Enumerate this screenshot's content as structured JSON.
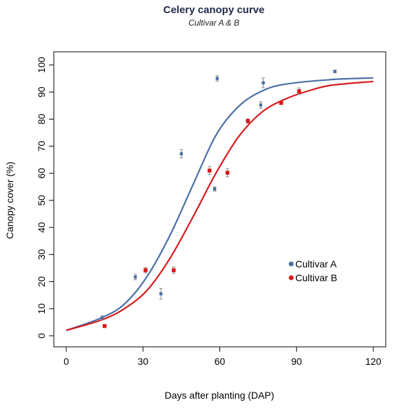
{
  "chart_data": {
    "type": "scatter",
    "title": "Celery canopy curve",
    "subtitle": "Cultivar A & B",
    "xlabel": "Days after planting (DAP)",
    "ylabel": "Canopy cover (%)",
    "xlim": [
      -5,
      125
    ],
    "ylim": [
      -4,
      104
    ],
    "xticks": [
      0,
      30,
      60,
      90,
      120
    ],
    "yticks": [
      0,
      10,
      20,
      30,
      40,
      50,
      60,
      70,
      80,
      90,
      100
    ],
    "grid": false,
    "legend_position": "bottom-right",
    "series": [
      {
        "name": "Cultivar A",
        "color": "#4a6fa5",
        "points": [
          {
            "x": 14,
            "y": 6.6,
            "err": 0.8
          },
          {
            "x": 27,
            "y": 21.7,
            "err": 1.0
          },
          {
            "x": 37,
            "y": 15.5,
            "err": 2.0
          },
          {
            "x": 45,
            "y": 67.2,
            "err": 1.5
          },
          {
            "x": 58,
            "y": 54.2,
            "err": 0.8
          },
          {
            "x": 59,
            "y": 95.0,
            "err": 1.0
          },
          {
            "x": 76,
            "y": 85.2,
            "err": 1.2
          },
          {
            "x": 77,
            "y": 93.4,
            "err": 1.8
          },
          {
            "x": 105,
            "y": 97.6,
            "err": 0.5
          }
        ],
        "fit": [
          [
            0,
            2
          ],
          [
            13.7,
            6.6
          ],
          [
            22.7,
            11.7
          ],
          [
            31.6,
            21.9
          ],
          [
            40.6,
            37.2
          ],
          [
            49.6,
            55.9
          ],
          [
            58.6,
            74.2
          ],
          [
            67.6,
            84.9
          ],
          [
            76.6,
            90.4
          ],
          [
            85.6,
            92.9
          ],
          [
            103.6,
            94.6
          ],
          [
            120,
            95.2
          ]
        ]
      },
      {
        "name": "Cultivar B",
        "color": "#d7191c",
        "points": [
          {
            "x": 15,
            "y": 3.6,
            "err": 0.5
          },
          {
            "x": 31,
            "y": 24.2,
            "err": 1.0
          },
          {
            "x": 42,
            "y": 24.2,
            "err": 1.2
          },
          {
            "x": 56,
            "y": 61.0,
            "err": 1.5
          },
          {
            "x": 63,
            "y": 60.2,
            "err": 1.5
          },
          {
            "x": 71,
            "y": 79.3,
            "err": 0.8
          },
          {
            "x": 84,
            "y": 86.0,
            "err": 0.6
          },
          {
            "x": 91,
            "y": 90.3,
            "err": 1.2
          }
        ],
        "fit": [
          [
            0,
            2
          ],
          [
            13.7,
            5.8
          ],
          [
            22.7,
            10.0
          ],
          [
            31.6,
            16.8
          ],
          [
            40.6,
            28.7
          ],
          [
            49.6,
            44.0
          ],
          [
            58.6,
            60.2
          ],
          [
            67.6,
            73.8
          ],
          [
            76.6,
            82.7
          ],
          [
            85.6,
            87.4
          ],
          [
            94.6,
            90.4
          ],
          [
            103.6,
            92.5
          ],
          [
            120,
            93.9
          ]
        ]
      }
    ]
  }
}
